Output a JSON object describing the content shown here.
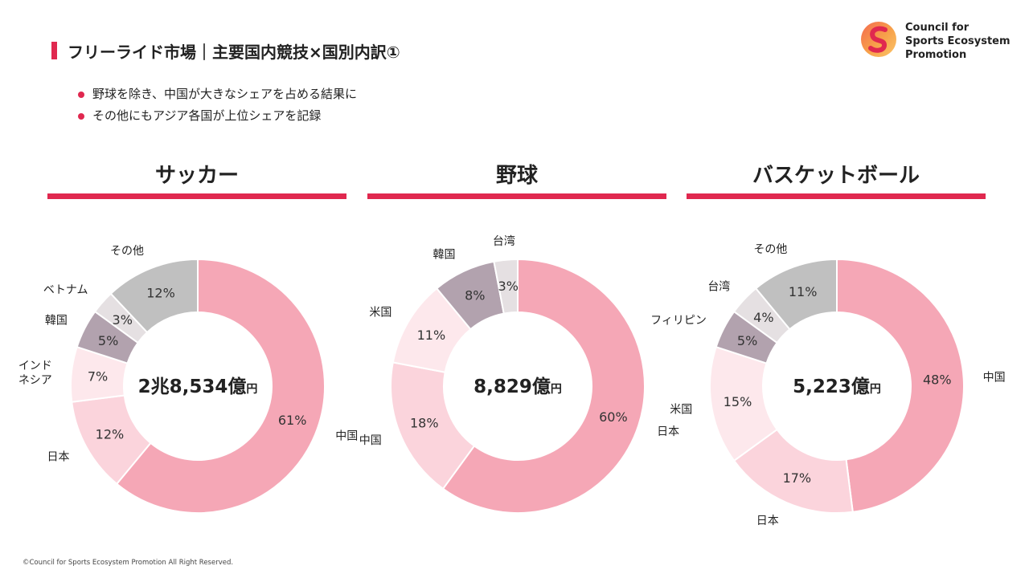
{
  "header": {
    "title": "フリーライド市場｜主要国内競技×国別内訳①"
  },
  "logo": {
    "lines": [
      "Council for",
      "Sports Ecosystem",
      "Promotion"
    ]
  },
  "bullets": [
    "野球を除き、中国が大きなシェアを占める結果に",
    "その他にもアジア各国が上位シェアを記録"
  ],
  "chart_data": [
    {
      "type": "donut",
      "title": "サッカー",
      "center_value": "2兆8,534億",
      "center_unit": "円",
      "slices": [
        {
          "label": "中国",
          "value": 61,
          "value_label": "61%",
          "color": "#f5a7b6"
        },
        {
          "label": "日本",
          "value": 12,
          "value_label": "12%",
          "color": "#fbd4dc"
        },
        {
          "label": "インド\nネシア",
          "value": 7,
          "value_label": "7%",
          "color": "#fde8ec"
        },
        {
          "label": "韓国",
          "value": 5,
          "value_label": "5%",
          "color": "#b2a2ae"
        },
        {
          "label": "ベトナム",
          "value": 3,
          "value_label": "3%",
          "color": "#e5e0e2"
        },
        {
          "label": "その他",
          "value": 12,
          "value_label": "12%",
          "color": "#c0c0c0"
        }
      ]
    },
    {
      "type": "donut",
      "title": "野球",
      "center_value": "8,829億",
      "center_unit": "円",
      "slices": [
        {
          "label": "日本",
          "value": 60,
          "value_label": "60%",
          "color": "#f5a7b6"
        },
        {
          "label": "中国",
          "value": 18,
          "value_label": "18%",
          "color": "#fbd4dc"
        },
        {
          "label": "米国",
          "value": 11,
          "value_label": "11%",
          "color": "#fde8ec"
        },
        {
          "label": "韓国",
          "value": 8,
          "value_label": "8%",
          "color": "#b2a2ae"
        },
        {
          "label": "台湾",
          "value": 3,
          "value_label": "3%",
          "color": "#e5e0e2"
        }
      ]
    },
    {
      "type": "donut",
      "title": "バスケットボール",
      "center_value": "5,223億",
      "center_unit": "円",
      "slices": [
        {
          "label": "中国",
          "value": 48,
          "value_label": "48%",
          "color": "#f5a7b6"
        },
        {
          "label": "日本",
          "value": 17,
          "value_label": "17%",
          "color": "#fbd4dc"
        },
        {
          "label": "米国",
          "value": 15,
          "value_label": "15%",
          "color": "#fde8ec"
        },
        {
          "label": "フィリピン",
          "value": 5,
          "value_label": "5%",
          "color": "#b2a2ae"
        },
        {
          "label": "台湾",
          "value": 4,
          "value_label": "4%",
          "color": "#e5e0e2"
        },
        {
          "label": "その他",
          "value": 11,
          "value_label": "11%",
          "color": "#c0c0c0"
        }
      ]
    }
  ],
  "footer": {
    "copyright": "©Council for Sports Ecosystem Promotion All Right Reserved."
  }
}
